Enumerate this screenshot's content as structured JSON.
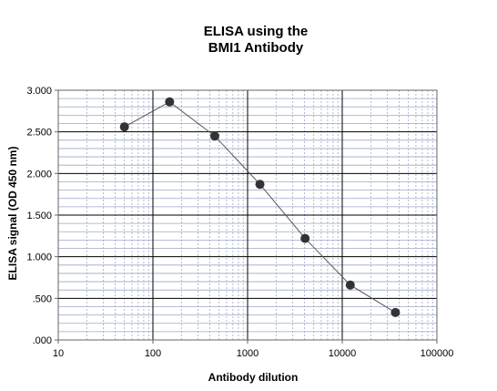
{
  "chart_data": {
    "type": "scatter",
    "title_lines": [
      "ELISA using the",
      "BMI1 Antibody"
    ],
    "xlabel": "Antibody dilution",
    "ylabel": "ELISA signal (OD 450 nm)",
    "x_scale": "log",
    "xlim": [
      10,
      100000
    ],
    "ylim": [
      0,
      3
    ],
    "x_tick_labels": [
      "10",
      "100",
      "1000",
      "10000",
      "100000"
    ],
    "y_tick_labels": [
      ".000",
      ".500",
      "1.000",
      "1.500",
      "2.000",
      "2.500",
      "3.000"
    ],
    "grid": true,
    "legend": "none",
    "series": [
      {
        "x": [
          50,
          150,
          450,
          1350,
          4050,
          12150,
          36450
        ],
        "y": [
          2.56,
          2.86,
          2.45,
          1.87,
          1.22,
          0.66,
          0.33
        ]
      }
    ],
    "colors": {
      "marker": "#333333",
      "line": "#555555",
      "major_grid": "#000000",
      "minor_grid": "#9aa8c8",
      "axis": "#666666"
    }
  }
}
